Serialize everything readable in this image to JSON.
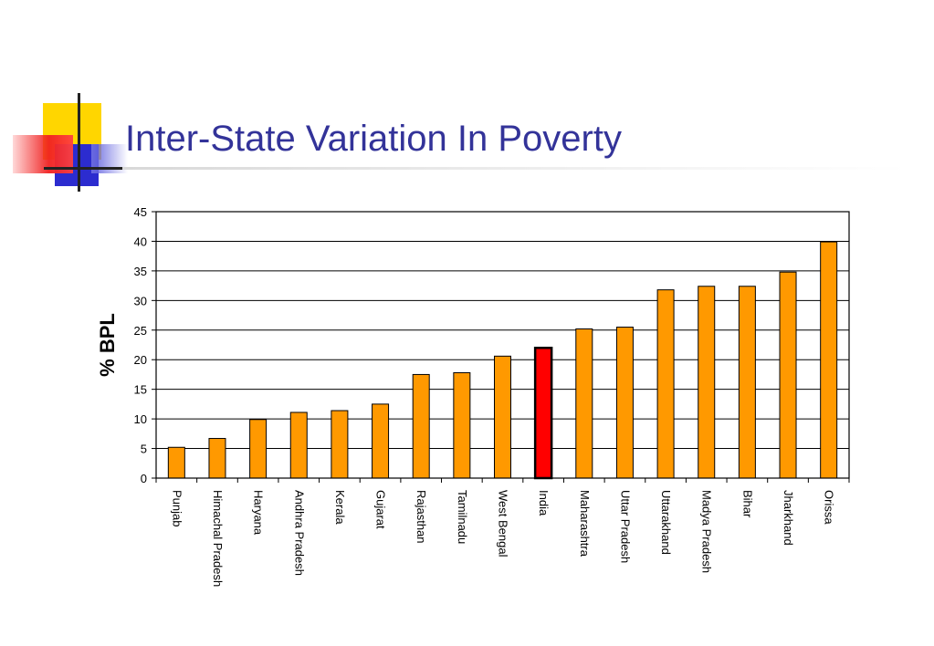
{
  "slide": {
    "title": "Inter-State Variation In Poverty"
  },
  "chart_data": {
    "type": "bar",
    "title": "",
    "xlabel": "",
    "ylabel": "% BPL",
    "ylim": [
      0,
      45
    ],
    "yticks": [
      0,
      5,
      10,
      15,
      20,
      25,
      30,
      35,
      40,
      45
    ],
    "grid": true,
    "legend": "none",
    "bar_color": "#ff9900",
    "highlight_color": "#ff0000",
    "highlight_category": "India",
    "categories": [
      "Punjab",
      "Himachal Pradesh",
      "Haryana",
      "Andhra Pradesh",
      "Kerala",
      "Gujarat",
      "Rajasthan",
      "Tamilnadu",
      "West Bengal",
      "India",
      "Maharashtra",
      "Uttar Pradesh",
      "Uttarakhand",
      "Madya Pradesh",
      "Bihar",
      "Jharkhand",
      "Orissa"
    ],
    "values": [
      5.2,
      6.7,
      9.9,
      11.1,
      11.4,
      12.5,
      17.5,
      17.8,
      20.6,
      22.0,
      25.2,
      25.5,
      31.8,
      32.4,
      32.4,
      34.8,
      39.9
    ]
  }
}
